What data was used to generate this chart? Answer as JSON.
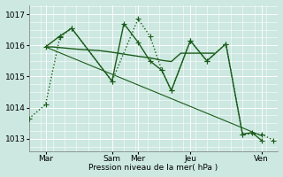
{
  "xlabel": "Pression niveau de la mer( hPa )",
  "bg_color": "#cce8e0",
  "grid_color": "#ffffff",
  "line_color": "#1a5c1a",
  "ylim": [
    1012.6,
    1017.3
  ],
  "xlim": [
    0.0,
    10.5
  ],
  "yticks": [
    1013,
    1014,
    1015,
    1016,
    1017
  ],
  "xtick_labels": [
    "Mar",
    "Sam",
    "Mer",
    "Jeu",
    "Ven"
  ],
  "xtick_positions": [
    0.7,
    3.5,
    4.6,
    6.8,
    9.8
  ],
  "vlines": [
    0.7,
    3.5,
    4.6,
    6.8,
    9.8
  ],
  "series": [
    {
      "x": [
        0.0,
        0.7,
        1.3,
        1.8,
        3.5,
        4.6,
        5.1,
        5.6,
        6.0,
        6.8,
        7.5,
        8.3,
        9.0,
        9.8,
        10.3
      ],
      "y": [
        1013.65,
        1014.1,
        1016.25,
        1016.55,
        1014.85,
        1016.85,
        1016.3,
        1015.2,
        1014.55,
        1016.15,
        1015.5,
        1016.05,
        1013.15,
        1013.15,
        1012.95
      ],
      "ls": ":",
      "marker": "+",
      "lw": 1.0,
      "ms": 4
    },
    {
      "x": [
        0.7,
        1.0,
        1.3,
        2.0,
        3.0,
        3.5,
        4.0,
        4.6,
        5.1,
        5.6,
        6.0,
        6.4,
        6.8,
        7.2,
        7.8
      ],
      "y": [
        1015.95,
        1015.95,
        1015.93,
        1015.88,
        1015.83,
        1015.78,
        1015.72,
        1015.65,
        1015.6,
        1015.52,
        1015.48,
        1015.75,
        1015.75,
        1015.75,
        1015.75
      ],
      "ls": "-",
      "marker": null,
      "lw": 1.0,
      "ms": 0
    },
    {
      "x": [
        0.7,
        9.8
      ],
      "y": [
        1015.95,
        1013.1
      ],
      "ls": "-",
      "marker": null,
      "lw": 0.8,
      "ms": 0
    },
    {
      "x": [
        0.7,
        1.3,
        1.8,
        3.5,
        4.0,
        4.6,
        5.1,
        5.6,
        6.0,
        6.8,
        7.5,
        8.3,
        9.0,
        9.4,
        9.8
      ],
      "y": [
        1015.95,
        1016.3,
        1016.55,
        1014.85,
        1016.7,
        1016.1,
        1015.5,
        1015.2,
        1014.55,
        1016.15,
        1015.5,
        1016.05,
        1013.15,
        1013.2,
        1012.95
      ],
      "ls": "-",
      "marker": "+",
      "lw": 1.0,
      "ms": 4
    }
  ]
}
